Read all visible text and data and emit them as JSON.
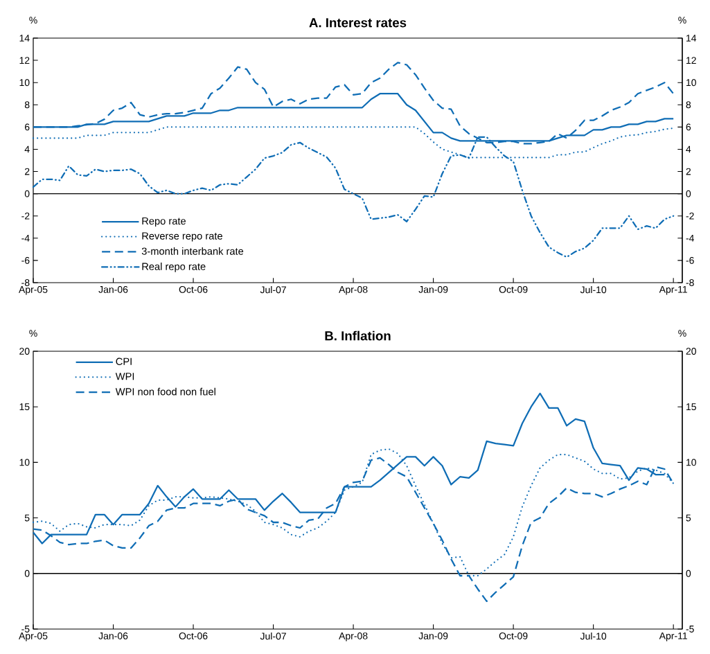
{
  "chart_data": [
    {
      "type": "line",
      "title": "A. Interest rates",
      "ylabel": "%",
      "y2label": "%",
      "x": [
        "2005-04",
        "2005-05",
        "2005-06",
        "2005-07",
        "2005-08",
        "2005-09",
        "2005-10",
        "2005-11",
        "2005-12",
        "2006-01",
        "2006-02",
        "2006-03",
        "2006-04",
        "2006-05",
        "2006-06",
        "2006-07",
        "2006-08",
        "2006-09",
        "2006-10",
        "2006-11",
        "2006-12",
        "2007-01",
        "2007-02",
        "2007-03",
        "2007-04",
        "2007-05",
        "2007-06",
        "2007-07",
        "2007-08",
        "2007-09",
        "2007-10",
        "2007-11",
        "2007-12",
        "2008-01",
        "2008-02",
        "2008-03",
        "2008-04",
        "2008-05",
        "2008-06",
        "2008-07",
        "2008-08",
        "2008-09",
        "2008-10",
        "2008-11",
        "2008-12",
        "2009-01",
        "2009-02",
        "2009-03",
        "2009-04",
        "2009-05",
        "2009-06",
        "2009-07",
        "2009-08",
        "2009-09",
        "2009-10",
        "2009-11",
        "2009-12",
        "2010-01",
        "2010-02",
        "2010-03",
        "2010-04",
        "2010-05",
        "2010-06",
        "2010-07",
        "2010-08",
        "2010-09",
        "2010-10",
        "2010-11",
        "2010-12",
        "2011-01",
        "2011-02",
        "2011-03",
        "2011-04"
      ],
      "series": [
        {
          "name": "Repo rate",
          "color": "#0f6db5",
          "line_style": "solid",
          "values": [
            6.0,
            6.0,
            6.0,
            6.0,
            6.0,
            6.0,
            6.25,
            6.25,
            6.25,
            6.5,
            6.5,
            6.5,
            6.5,
            6.5,
            6.75,
            7.0,
            7.0,
            7.0,
            7.25,
            7.25,
            7.25,
            7.5,
            7.5,
            7.75,
            7.75,
            7.75,
            7.75,
            7.75,
            7.75,
            7.75,
            7.75,
            7.75,
            7.75,
            7.75,
            7.75,
            7.75,
            7.75,
            7.75,
            8.5,
            9.0,
            9.0,
            9.0,
            8.0,
            7.5,
            6.5,
            5.5,
            5.5,
            5.0,
            4.75,
            4.75,
            4.75,
            4.75,
            4.75,
            4.75,
            4.75,
            4.75,
            4.75,
            4.75,
            4.75,
            5.0,
            5.25,
            5.25,
            5.25,
            5.75,
            5.75,
            6.0,
            6.0,
            6.25,
            6.25,
            6.5,
            6.5,
            6.75,
            6.75
          ]
        },
        {
          "name": "Reverse repo rate",
          "color": "#0f6db5",
          "line_style": "dotted",
          "values": [
            5.0,
            5.0,
            5.0,
            5.0,
            5.0,
            5.0,
            5.25,
            5.25,
            5.25,
            5.5,
            5.5,
            5.5,
            5.5,
            5.5,
            5.75,
            6.0,
            6.0,
            6.0,
            6.0,
            6.0,
            6.0,
            6.0,
            6.0,
            6.0,
            6.0,
            6.0,
            6.0,
            6.0,
            6.0,
            6.0,
            6.0,
            6.0,
            6.0,
            6.0,
            6.0,
            6.0,
            6.0,
            6.0,
            6.0,
            6.0,
            6.0,
            6.0,
            6.0,
            6.0,
            5.4,
            4.65,
            4.0,
            3.75,
            3.5,
            3.25,
            3.25,
            3.25,
            3.25,
            3.25,
            3.25,
            3.25,
            3.25,
            3.25,
            3.25,
            3.5,
            3.5,
            3.75,
            3.75,
            4.15,
            4.5,
            4.75,
            5.1,
            5.25,
            5.3,
            5.5,
            5.6,
            5.8,
            5.9
          ]
        },
        {
          "name": "3-month interbank rate",
          "color": "#0f6db5",
          "line_style": "dashed",
          "values": [
            6.0,
            6.0,
            6.0,
            6.0,
            6.0,
            6.1,
            6.2,
            6.3,
            6.7,
            7.5,
            7.7,
            8.2,
            7.1,
            6.9,
            7.1,
            7.2,
            7.2,
            7.3,
            7.5,
            7.7,
            9.0,
            9.5,
            10.4,
            11.4,
            11.2,
            10.0,
            9.4,
            7.8,
            8.3,
            8.5,
            8.1,
            8.5,
            8.6,
            8.6,
            9.6,
            9.8,
            8.9,
            9.0,
            10.0,
            10.4,
            11.2,
            11.8,
            11.6,
            10.7,
            9.5,
            8.4,
            7.7,
            7.6,
            6.1,
            5.4,
            5.0,
            4.6,
            4.6,
            4.7,
            4.7,
            4.5,
            4.5,
            4.6,
            4.7,
            5.4,
            5.0,
            5.7,
            6.6,
            6.6,
            7.0,
            7.5,
            7.8,
            8.2,
            9.0,
            9.3,
            9.6,
            10.0,
            9.0
          ]
        },
        {
          "name": "Real repo rate",
          "color": "#0f6db5",
          "line_style": "dashdotdot",
          "values": [
            0.6,
            1.3,
            1.3,
            1.2,
            2.5,
            1.7,
            1.6,
            2.2,
            2.0,
            2.1,
            2.1,
            2.2,
            1.8,
            0.7,
            0.1,
            0.3,
            0.0,
            0.0,
            0.3,
            0.5,
            0.3,
            0.8,
            0.9,
            0.8,
            1.5,
            2.2,
            3.2,
            3.4,
            3.7,
            4.4,
            4.6,
            4.1,
            3.7,
            3.3,
            2.3,
            0.4,
            0.0,
            -0.4,
            -2.3,
            -2.2,
            -2.1,
            -1.9,
            -2.5,
            -1.4,
            -0.2,
            -0.3,
            1.8,
            3.4,
            3.5,
            3.2,
            5.1,
            5.1,
            4.2,
            3.4,
            2.9,
            0.3,
            -2.0,
            -3.5,
            -4.8,
            -5.3,
            -5.7,
            -5.2,
            -4.9,
            -4.2,
            -3.1,
            -3.1,
            -3.1,
            -2.0,
            -3.2,
            -2.9,
            -3.1,
            -2.3,
            -2.0
          ]
        }
      ],
      "xlim": [
        "2005-04",
        "2011-05"
      ],
      "xticks": [
        {
          "value": "2005-04",
          "label": "Apr-05"
        },
        {
          "value": "2006-01",
          "label": "Jan-06"
        },
        {
          "value": "2006-10",
          "label": "Oct-06"
        },
        {
          "value": "2007-07",
          "label": "Jul-07"
        },
        {
          "value": "2008-04",
          "label": "Apr-08"
        },
        {
          "value": "2009-01",
          "label": "Jan-09"
        },
        {
          "value": "2009-10",
          "label": "Oct-09"
        },
        {
          "value": "2010-07",
          "label": "Jul-10"
        },
        {
          "value": "2011-04",
          "label": "Apr-11"
        }
      ],
      "ylim": [
        -8,
        14
      ],
      "yticks": [
        -8,
        -6,
        -4,
        -2,
        0,
        2,
        4,
        6,
        8,
        10,
        12,
        14
      ],
      "y2lim": [
        -8,
        14
      ],
      "y2ticks": [
        -8,
        -6,
        -4,
        -2,
        0,
        2,
        4,
        6,
        8,
        10,
        12,
        14
      ],
      "ref_lines": [
        {
          "axis": "y",
          "value": 0,
          "color": "#000000"
        }
      ],
      "legend": "bottom left"
    },
    {
      "type": "line",
      "title": "B. Inflation",
      "ylabel": "%",
      "y2label": "%",
      "x": [
        "2005-04",
        "2005-05",
        "2005-06",
        "2005-07",
        "2005-08",
        "2005-09",
        "2005-10",
        "2005-11",
        "2005-12",
        "2006-01",
        "2006-02",
        "2006-03",
        "2006-04",
        "2006-05",
        "2006-06",
        "2006-07",
        "2006-08",
        "2006-09",
        "2006-10",
        "2006-11",
        "2006-12",
        "2007-01",
        "2007-02",
        "2007-03",
        "2007-04",
        "2007-05",
        "2007-06",
        "2007-07",
        "2007-08",
        "2007-09",
        "2007-10",
        "2007-11",
        "2007-12",
        "2008-01",
        "2008-02",
        "2008-03",
        "2008-04",
        "2008-05",
        "2008-06",
        "2008-07",
        "2008-08",
        "2008-09",
        "2008-10",
        "2008-11",
        "2008-12",
        "2009-01",
        "2009-02",
        "2009-03",
        "2009-04",
        "2009-05",
        "2009-06",
        "2009-07",
        "2009-08",
        "2009-09",
        "2009-10",
        "2009-11",
        "2009-12",
        "2010-01",
        "2010-02",
        "2010-03",
        "2010-04",
        "2010-05",
        "2010-06",
        "2010-07",
        "2010-08",
        "2010-09",
        "2010-10",
        "2010-11",
        "2010-12",
        "2011-01",
        "2011-02",
        "2011-03",
        "2011-04"
      ],
      "series": [
        {
          "name": "CPI",
          "color": "#0f6db5",
          "line_style": "solid",
          "values": [
            3.7,
            2.7,
            3.5,
            3.5,
            3.5,
            3.5,
            3.5,
            5.3,
            5.3,
            4.4,
            5.3,
            5.3,
            5.3,
            6.3,
            7.9,
            6.9,
            6.0,
            6.9,
            7.6,
            6.7,
            6.7,
            6.7,
            7.5,
            6.7,
            6.7,
            6.7,
            5.7,
            6.5,
            7.2,
            6.4,
            5.5,
            5.5,
            5.5,
            5.5,
            5.5,
            7.8,
            7.8,
            7.8,
            7.8,
            8.4,
            9.1,
            9.8,
            10.5,
            10.5,
            9.7,
            10.5,
            9.7,
            8.0,
            8.7,
            8.6,
            9.3,
            11.9,
            11.7,
            11.6,
            11.5,
            13.5,
            15.0,
            16.2,
            14.9,
            14.9,
            13.3,
            13.9,
            13.7,
            11.3,
            9.9,
            9.8,
            9.7,
            8.4,
            9.5,
            9.4,
            8.9,
            8.9,
            null
          ]
        },
        {
          "name": "WPI",
          "color": "#0f6db5",
          "line_style": "dotted",
          "values": [
            4.6,
            4.7,
            4.5,
            3.8,
            4.4,
            4.5,
            4.2,
            4.1,
            4.4,
            4.4,
            4.4,
            4.3,
            4.8,
            6.1,
            6.6,
            6.6,
            6.9,
            6.9,
            6.8,
            6.8,
            6.9,
            6.8,
            6.7,
            6.5,
            6.2,
            5.6,
            4.6,
            4.4,
            4.1,
            3.5,
            3.3,
            3.8,
            4.1,
            4.7,
            5.5,
            7.5,
            7.8,
            8.2,
            10.7,
            11.1,
            11.2,
            10.8,
            9.7,
            7.9,
            6.2,
            4.5,
            2.7,
            1.4,
            1.5,
            -0.2,
            -0.2,
            0.4,
            1.1,
            1.7,
            3.3,
            6.0,
            7.9,
            9.5,
            10.2,
            10.7,
            10.7,
            10.4,
            10.1,
            9.4,
            9.0,
            9.0,
            8.5,
            8.6,
            9.2,
            9.5,
            9.3,
            9.0,
            8.1
          ]
        },
        {
          "name": "WPI non food non fuel",
          "color": "#0f6db5",
          "line_style": "dashed",
          "values": [
            4.0,
            3.9,
            3.4,
            2.8,
            2.6,
            2.7,
            2.7,
            2.9,
            3.0,
            2.5,
            2.3,
            2.3,
            3.2,
            4.3,
            4.7,
            5.7,
            5.9,
            5.9,
            6.3,
            6.3,
            6.3,
            6.1,
            6.5,
            6.7,
            5.8,
            5.5,
            5.2,
            4.6,
            4.6,
            4.3,
            4.1,
            4.8,
            4.9,
            5.9,
            6.3,
            7.8,
            8.2,
            8.3,
            10.2,
            10.4,
            9.8,
            9.1,
            8.7,
            7.3,
            5.9,
            4.5,
            3.0,
            1.3,
            -0.2,
            -0.2,
            -1.4,
            -2.5,
            -1.7,
            -1.0,
            -0.3,
            2.5,
            4.6,
            5.0,
            6.3,
            6.9,
            7.7,
            7.3,
            7.2,
            7.2,
            6.9,
            7.2,
            7.6,
            7.9,
            8.3,
            8.0,
            9.6,
            9.4,
            8.1
          ]
        }
      ],
      "xlim": [
        "2005-04",
        "2011-05"
      ],
      "xticks": [
        {
          "value": "2005-04",
          "label": "Apr-05"
        },
        {
          "value": "2006-01",
          "label": "Jan-06"
        },
        {
          "value": "2006-10",
          "label": "Oct-06"
        },
        {
          "value": "2007-07",
          "label": "Jul-07"
        },
        {
          "value": "2008-04",
          "label": "Apr-08"
        },
        {
          "value": "2009-01",
          "label": "Jan-09"
        },
        {
          "value": "2009-10",
          "label": "Oct-09"
        },
        {
          "value": "2010-07",
          "label": "Jul-10"
        },
        {
          "value": "2011-04",
          "label": "Apr-11"
        }
      ],
      "ylim": [
        -5,
        20
      ],
      "yticks": [
        -5,
        0,
        5,
        10,
        15,
        20
      ],
      "y2lim": [
        -5,
        20
      ],
      "y2ticks": [
        -5,
        0,
        5,
        10,
        15,
        20
      ],
      "ref_lines": [
        {
          "axis": "y",
          "value": 0,
          "color": "#000000"
        }
      ],
      "legend": "top left"
    }
  ]
}
